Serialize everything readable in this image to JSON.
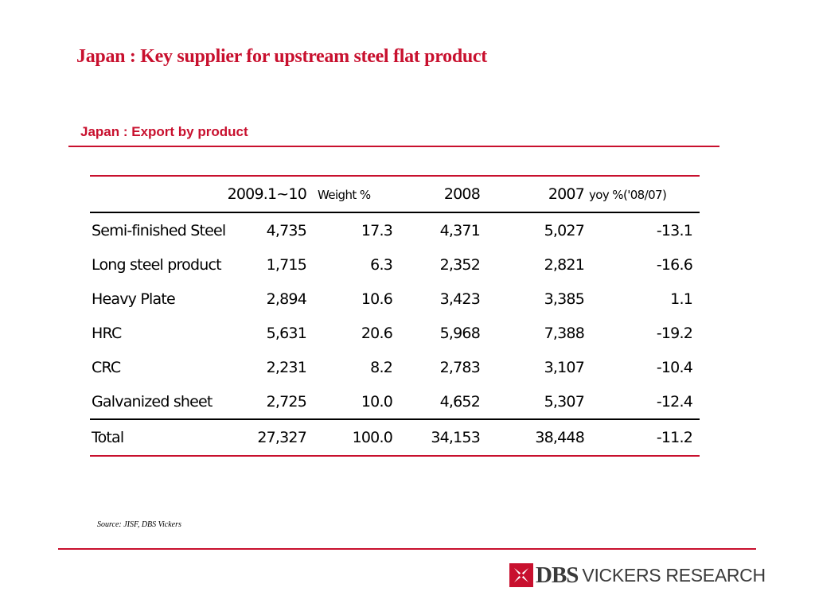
{
  "slide_title": "Japan : Key supplier for upstream steel flat product",
  "subtitle": "Japan : Export by product",
  "table": {
    "headers": {
      "period": "2009.1~10",
      "weight": "Weight %",
      "y2008": "2008",
      "y2007": "2007",
      "yoy": "yoy %('08/07)"
    },
    "rows": [
      {
        "product": "Semi-finished Steel",
        "val_2009": "4,735",
        "weight": "17.3",
        "val_2008": "4,371",
        "val_2007": "5,027",
        "yoy": "-13.1"
      },
      {
        "product": "Long steel product",
        "val_2009": "1,715",
        "weight": "6.3",
        "val_2008": "2,352",
        "val_2007": "2,821",
        "yoy": "-16.6"
      },
      {
        "product": "Heavy Plate",
        "val_2009": "2,894",
        "weight": "10.6",
        "val_2008": "3,423",
        "val_2007": "3,385",
        "yoy": "1.1"
      },
      {
        "product": "HRC",
        "val_2009": "5,631",
        "weight": "20.6",
        "val_2008": "5,968",
        "val_2007": "7,388",
        "yoy": "-19.2"
      },
      {
        "product": "CRC",
        "val_2009": "2,231",
        "weight": "8.2",
        "val_2008": "2,783",
        "val_2007": "3,107",
        "yoy": "-10.4"
      },
      {
        "product": "Galvanized sheet",
        "val_2009": "2,725",
        "weight": "10.0",
        "val_2008": "4,652",
        "val_2007": "5,307",
        "yoy": "-12.4"
      }
    ],
    "total": {
      "product": "Total",
      "val_2009": "27,327",
      "weight": "100.0",
      "val_2008": "34,153",
      "val_2007": "38,448",
      "yoy": "-11.2"
    }
  },
  "source": "Source: JISF, DBS Vickers",
  "logo": {
    "brand": "DBS",
    "text": "VICKERS RESEARCH",
    "icon": "dbs-logo-icon"
  },
  "colors": {
    "accent": "#c8102e",
    "text": "#000000",
    "logo_text": "#3a3a3a"
  }
}
